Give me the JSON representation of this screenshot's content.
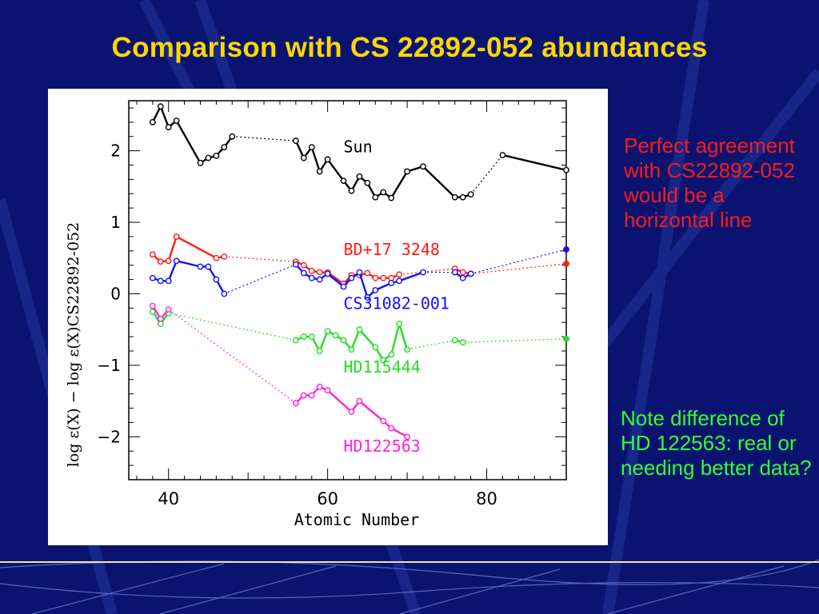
{
  "slide": {
    "title": "Comparison with CS 22892-052 abundances",
    "note_top": "Perfect agreement with CS22892-052 would be a horizontal line",
    "note_bottom": "Note difference of HD 122563: real or needing better data?",
    "colors": {
      "background": "#0a1470",
      "title": "#ffd700",
      "note_top": "#ff1a1a",
      "note_bottom": "#33ff33"
    }
  },
  "chart_data": {
    "type": "line",
    "xlabel": "Atomic Number",
    "ylabel": "log ε(X) − log ε(X)CS22892-052",
    "xlim": [
      35,
      90
    ],
    "ylim": [
      -2.6,
      2.7
    ],
    "xticks": [
      40,
      60,
      80
    ],
    "yticks": [
      -2,
      -1,
      0,
      1,
      2
    ],
    "series": [
      {
        "name": "Sun",
        "color": "#000000",
        "points": [
          [
            38,
            2.4
          ],
          [
            39,
            2.62
          ],
          [
            40,
            2.33
          ],
          [
            41,
            2.42
          ],
          [
            44,
            1.83
          ],
          [
            45,
            1.9
          ],
          [
            46,
            1.93
          ],
          [
            47,
            2.05
          ],
          [
            48,
            2.2
          ],
          [
            56,
            2.14
          ],
          [
            57,
            1.9
          ],
          [
            58,
            2.05
          ],
          [
            59,
            1.71
          ],
          [
            60,
            1.88
          ],
          [
            62,
            1.58
          ],
          [
            63,
            1.44
          ],
          [
            64,
            1.64
          ],
          [
            65,
            1.55
          ],
          [
            66,
            1.35
          ],
          [
            67,
            1.42
          ],
          [
            68,
            1.34
          ],
          [
            70,
            1.71
          ],
          [
            72,
            1.78
          ],
          [
            76,
            1.35
          ],
          [
            77,
            1.35
          ],
          [
            78,
            1.39
          ],
          [
            82,
            1.94
          ],
          [
            90,
            1.73
          ]
        ],
        "dotted_after": [
          8,
          25,
          27
        ]
      },
      {
        "name": "BD+17 3248",
        "color": "#ff1a1a",
        "points": [
          [
            38,
            0.55
          ],
          [
            39,
            0.45
          ],
          [
            40,
            0.46
          ],
          [
            41,
            0.8
          ],
          [
            46,
            0.5
          ],
          [
            47,
            0.52
          ],
          [
            56,
            0.45
          ],
          [
            57,
            0.4
          ],
          [
            58,
            0.32
          ],
          [
            59,
            0.3
          ],
          [
            60,
            0.3
          ],
          [
            62,
            0.14
          ],
          [
            63,
            0.26
          ],
          [
            64,
            0.26
          ],
          [
            65,
            0.29
          ],
          [
            66,
            0.22
          ],
          [
            67,
            0.22
          ],
          [
            68,
            0.22
          ],
          [
            69,
            0.27
          ],
          [
            76,
            0.35
          ],
          [
            77,
            0.3
          ],
          [
            78,
            0.28
          ],
          [
            90,
            0.42
          ]
        ],
        "dotted_after": [
          5,
          18,
          21
        ]
      },
      {
        "name": "CS31082-001",
        "color": "#1010ff",
        "points": [
          [
            38,
            0.22
          ],
          [
            39,
            0.18
          ],
          [
            40,
            0.18
          ],
          [
            41,
            0.46
          ],
          [
            44,
            0.38
          ],
          [
            45,
            0.38
          ],
          [
            46,
            0.2
          ],
          [
            47,
            0.0
          ],
          [
            56,
            0.41
          ],
          [
            57,
            0.29
          ],
          [
            58,
            0.22
          ],
          [
            59,
            0.2
          ],
          [
            60,
            0.28
          ],
          [
            62,
            0.1
          ],
          [
            63,
            0.22
          ],
          [
            64,
            0.3
          ],
          [
            65,
            -0.05
          ],
          [
            66,
            0.05
          ],
          [
            68,
            0.15
          ],
          [
            69,
            0.18
          ],
          [
            72,
            0.3
          ],
          [
            76,
            0.3
          ],
          [
            77,
            0.22
          ],
          [
            78,
            0.28
          ],
          [
            90,
            0.62
          ]
        ],
        "dotted_after": [
          7,
          20,
          23
        ]
      },
      {
        "name": "HD115444",
        "color": "#22dd22",
        "points": [
          [
            38,
            -0.25
          ],
          [
            39,
            -0.42
          ],
          [
            40,
            -0.27
          ],
          [
            56,
            -0.65
          ],
          [
            57,
            -0.6
          ],
          [
            58,
            -0.6
          ],
          [
            59,
            -0.8
          ],
          [
            60,
            -0.52
          ],
          [
            61,
            -0.58
          ],
          [
            62,
            -0.65
          ],
          [
            63,
            -0.78
          ],
          [
            64,
            -0.5
          ],
          [
            66,
            -0.75
          ],
          [
            67,
            -0.93
          ],
          [
            68,
            -0.85
          ],
          [
            69,
            -0.42
          ],
          [
            70,
            -0.78
          ],
          [
            76,
            -0.65
          ],
          [
            77,
            -0.68
          ],
          [
            90,
            -0.63
          ]
        ],
        "dotted_after": [
          2,
          16,
          18
        ]
      },
      {
        "name": "HD122563",
        "color": "#ff22dd",
        "points": [
          [
            38,
            -0.17
          ],
          [
            39,
            -0.35
          ],
          [
            40,
            -0.22
          ],
          [
            56,
            -1.53
          ],
          [
            57,
            -1.42
          ],
          [
            58,
            -1.42
          ],
          [
            59,
            -1.3
          ],
          [
            60,
            -1.35
          ],
          [
            63,
            -1.65
          ],
          [
            64,
            -1.5
          ],
          [
            67,
            -1.78
          ],
          [
            68,
            -1.88
          ],
          [
            70,
            -2.0
          ]
        ],
        "dotted_after": [
          2
        ]
      }
    ],
    "labels": [
      {
        "text": "Sun",
        "x": 62,
        "y": 1.98,
        "color": "#000000"
      },
      {
        "text": "BD+17  3248",
        "x": 62,
        "y": 0.54,
        "color": "#ff1a1a"
      },
      {
        "text": "CS31082-001",
        "x": 62,
        "y": -0.21,
        "color": "#1010ff"
      },
      {
        "text": "HD115444",
        "x": 62,
        "y": -1.1,
        "color": "#22dd22"
      },
      {
        "text": "HD122563",
        "x": 62,
        "y": -2.21,
        "color": "#ff22dd"
      }
    ]
  }
}
